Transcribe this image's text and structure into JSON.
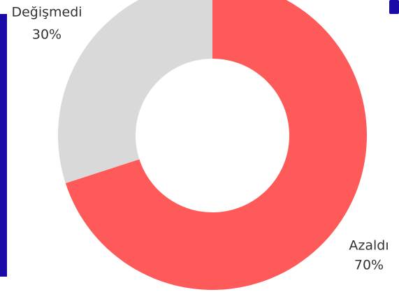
{
  "chart_data": {
    "type": "pie",
    "donut": true,
    "categories": [
      "Azaldı",
      "Değişmedi"
    ],
    "values": [
      70,
      30
    ],
    "value_labels": [
      "70%",
      "30%"
    ],
    "colors": [
      "#ff5a5a",
      "#d9d9d9"
    ]
  }
}
